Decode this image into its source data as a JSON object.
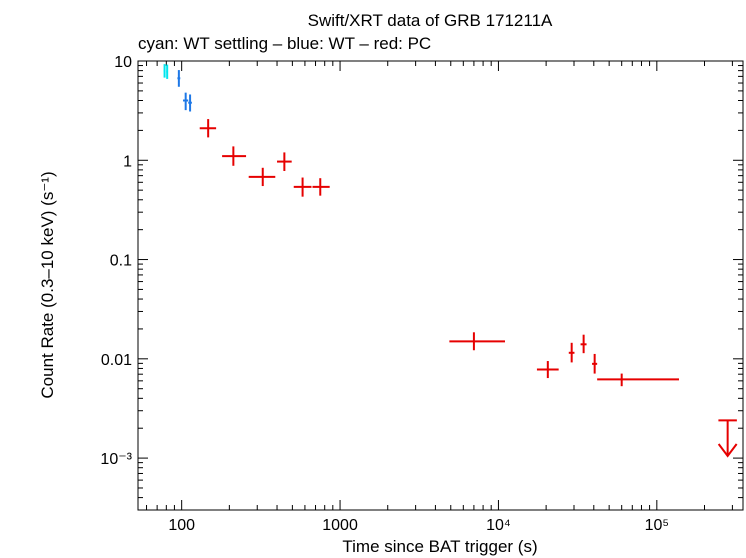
{
  "chart_data": {
    "type": "scatter",
    "title": "Swift/XRT data of GRB 171211A",
    "subtitle": "cyan: WT settling – blue: WT – red: PC",
    "xlabel": "Time since BAT trigger (s)",
    "ylabel": "Count Rate (0.3–10 keV) (s⁻¹)",
    "x_scale": "log",
    "y_scale": "log",
    "xlim": [
      53,
      350000
    ],
    "ylim": [
      0.0003,
      10
    ],
    "x_ticks": [
      {
        "value": 100,
        "label": "100"
      },
      {
        "value": 1000,
        "label": "1000"
      },
      {
        "value": 10000,
        "label": "10⁴"
      },
      {
        "value": 100000,
        "label": "10⁵"
      }
    ],
    "y_ticks": [
      {
        "value": 10,
        "label": "10"
      },
      {
        "value": 1,
        "label": "1"
      },
      {
        "value": 0.1,
        "label": "0.1"
      },
      {
        "value": 0.01,
        "label": "0.01"
      },
      {
        "value": 0.001,
        "label": "10⁻³"
      }
    ],
    "series": [
      {
        "color": "#00e5ee",
        "points": [
          {
            "x": 78,
            "x_lo": 77,
            "x_hi": 79,
            "y": 8.0,
            "y_lo": 6.8,
            "y_hi": 9.3
          },
          {
            "x": 81,
            "x_lo": 80,
            "x_hi": 82,
            "y": 7.8,
            "y_lo": 6.6,
            "y_hi": 9.2
          }
        ]
      },
      {
        "color": "#1e78e6",
        "points": [
          {
            "x": 96,
            "x_lo": 94,
            "x_hi": 98,
            "y": 6.7,
            "y_lo": 5.5,
            "y_hi": 8.1
          },
          {
            "x": 106,
            "x_lo": 102,
            "x_hi": 110,
            "y": 4.0,
            "y_lo": 3.2,
            "y_hi": 4.8
          },
          {
            "x": 113,
            "x_lo": 110,
            "x_hi": 116,
            "y": 3.8,
            "y_lo": 3.1,
            "y_hi": 4.6
          }
        ]
      },
      {
        "color": "#e60000",
        "points": [
          {
            "x": 147,
            "x_lo": 130,
            "x_hi": 165,
            "y": 2.1,
            "y_lo": 1.7,
            "y_hi": 2.6
          },
          {
            "x": 212,
            "x_lo": 180,
            "x_hi": 255,
            "y": 1.1,
            "y_lo": 0.88,
            "y_hi": 1.38
          },
          {
            "x": 325,
            "x_lo": 265,
            "x_hi": 390,
            "y": 0.68,
            "y_lo": 0.55,
            "y_hi": 0.84
          },
          {
            "x": 445,
            "x_lo": 400,
            "x_hi": 495,
            "y": 0.97,
            "y_lo": 0.78,
            "y_hi": 1.2
          },
          {
            "x": 580,
            "x_lo": 510,
            "x_hi": 660,
            "y": 0.54,
            "y_lo": 0.43,
            "y_hi": 0.67
          },
          {
            "x": 750,
            "x_lo": 670,
            "x_hi": 860,
            "y": 0.54,
            "y_lo": 0.44,
            "y_hi": 0.66
          },
          {
            "x": 7000,
            "x_lo": 4900,
            "x_hi": 11000,
            "y": 0.015,
            "y_lo": 0.0122,
            "y_hi": 0.0185
          },
          {
            "x": 20500,
            "x_lo": 17500,
            "x_hi": 24000,
            "y": 0.0078,
            "y_lo": 0.0064,
            "y_hi": 0.0095
          },
          {
            "x": 29000,
            "x_lo": 27800,
            "x_hi": 30200,
            "y": 0.0115,
            "y_lo": 0.0092,
            "y_hi": 0.0145
          },
          {
            "x": 34500,
            "x_lo": 33000,
            "x_hi": 36000,
            "y": 0.014,
            "y_lo": 0.0114,
            "y_hi": 0.0175
          },
          {
            "x": 40500,
            "x_lo": 39000,
            "x_hi": 42000,
            "y": 0.0089,
            "y_lo": 0.0071,
            "y_hi": 0.0112
          },
          {
            "x": 60000,
            "x_lo": 42000,
            "x_hi": 138000,
            "y": 0.0062,
            "y_lo": 0.0053,
            "y_hi": 0.0071
          }
        ]
      }
    ],
    "upper_limits": [
      {
        "color": "#e60000",
        "x": 280000,
        "x_lo": 275000,
        "x_hi": 285000,
        "y": 0.0024,
        "arrow_to": 0.00105
      }
    ]
  }
}
